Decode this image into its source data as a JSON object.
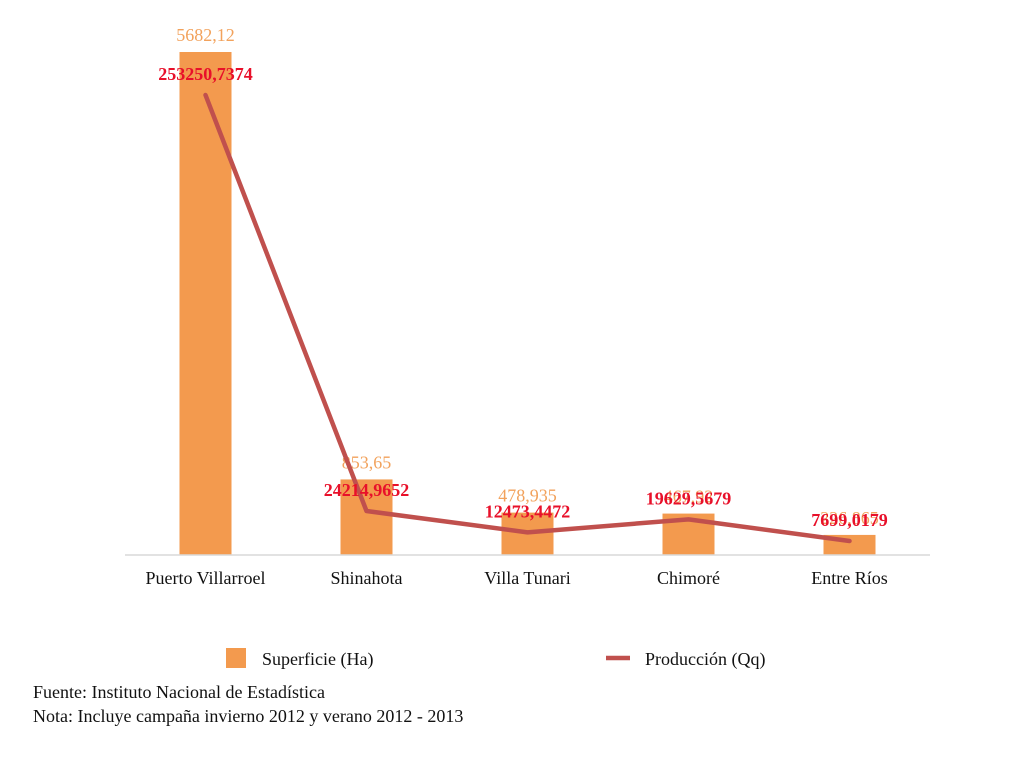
{
  "chart_data": {
    "type": "bar",
    "categories": [
      "Puerto Villarroel",
      "Shinahota",
      "Villa Tunari",
      "Chimoré",
      "Entre Ríos"
    ],
    "series": [
      {
        "name": "Superficie (Ha)",
        "type": "bar",
        "axis": "left",
        "color": "#F39A4E",
        "values": [
          5682.12,
          853.65,
          478.935,
          467.92,
          226.865
        ],
        "labels": [
          "5682,12",
          "853,65",
          "478,935",
          "467,92",
          "226,865"
        ]
      },
      {
        "name": "Producción (Qq)",
        "type": "line",
        "axis": "right",
        "color": "#C0504D",
        "values": [
          253250.7374,
          24214.9652,
          12473.4472,
          19629.5679,
          7699.0179
        ],
        "labels": [
          "253250,7374",
          "24214,9652",
          "12473,4472",
          "19629,5679",
          "7699,0179"
        ]
      }
    ],
    "grid": false,
    "legend_position": "bottom"
  },
  "colors": {
    "bar": "#F39A4E",
    "bar_label": "#F2A25C",
    "line": "#C0504D",
    "line_label": "#E8102A",
    "axis": "#D9D9D9",
    "text": "#111111"
  },
  "notes": {
    "source": "Fuente: Instituto Nacional de Estadística",
    "note": "Nota: Incluye campaña invierno 2012 y verano 2012 - 2013"
  }
}
